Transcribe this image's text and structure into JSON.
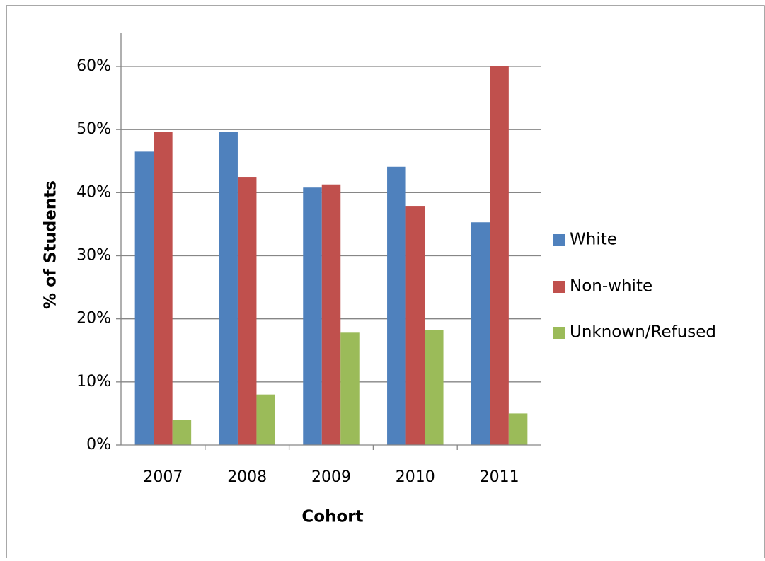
{
  "chart_data": {
    "type": "bar",
    "title": "",
    "xlabel": "Cohort",
    "ylabel": "% of Students",
    "categories": [
      "2007",
      "2008",
      "2009",
      "2010",
      "2011"
    ],
    "series": [
      {
        "name": "White",
        "values": [
          46.5,
          49.6,
          40.8,
          44.1,
          35.3
        ],
        "color": "#4F81BD"
      },
      {
        "name": "Non-white",
        "values": [
          49.6,
          42.5,
          41.3,
          37.9,
          60.0
        ],
        "color": "#C0504D"
      },
      {
        "name": "Unknown/Refused",
        "values": [
          4.0,
          8.0,
          17.8,
          18.2,
          5.0
        ],
        "color": "#9BBB59"
      }
    ],
    "ylim": [
      0,
      60
    ],
    "yticks": [
      0,
      10,
      20,
      30,
      40,
      50,
      60
    ],
    "ytick_labels": [
      "0%",
      "10%",
      "20%",
      "30%",
      "40%",
      "50%",
      "60%"
    ],
    "grid": true,
    "legend_position": "right"
  }
}
